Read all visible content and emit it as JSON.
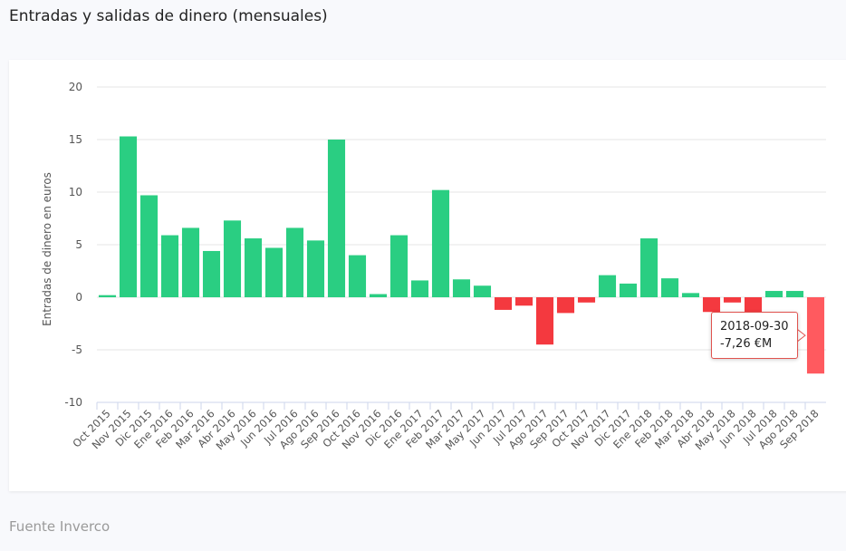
{
  "page": {
    "title": "Entradas y salidas de dinero (mensuales)",
    "source": "Fuente Inverco"
  },
  "tooltip": {
    "date": "2018-09-30",
    "value": "-7,26 €M"
  },
  "colors": {
    "positive": "#2ace82",
    "negative": "#f4393f",
    "highlight": "#ff5a5f"
  },
  "chart_data": {
    "type": "bar",
    "title": "",
    "xlabel": "",
    "ylabel": "Entradas de dinero en euros",
    "ylim": [
      -10,
      20
    ],
    "yticks": [
      -10,
      -5,
      0,
      5,
      10,
      15,
      20
    ],
    "grid": true,
    "categories": [
      "Oct 2015",
      "Nov 2015",
      "Dic 2015",
      "Ene 2016",
      "Feb 2016",
      "Mar 2016",
      "Abr 2016",
      "May 2016",
      "Jun 2016",
      "Jul 2016",
      "Ago 2016",
      "Sep 2016",
      "Oct 2016",
      "Nov 2016",
      "Dic 2016",
      "Ene 2017",
      "Feb 2017",
      "Mar 2017",
      "May 2017",
      "Jun 2017",
      "Jul 2017",
      "Ago 2017",
      "Sep 2017",
      "Oct 2017",
      "Nov 2017",
      "Dic 2017",
      "Ene 2018",
      "Feb 2018",
      "Mar 2018",
      "Abr 2018",
      "May 2018",
      "Jun 2018",
      "Jul 2018",
      "Ago 2018",
      "Sep 2018"
    ],
    "values": [
      0.2,
      15.3,
      9.7,
      5.9,
      6.6,
      4.4,
      7.3,
      5.6,
      4.7,
      6.6,
      5.4,
      15.0,
      4.0,
      0.3,
      5.9,
      1.6,
      10.2,
      1.7,
      1.1,
      -1.2,
      -0.8,
      -4.5,
      -1.5,
      -0.5,
      2.1,
      1.3,
      5.6,
      1.8,
      0.4,
      -1.4,
      -0.5,
      -3.3,
      0.6,
      0.6,
      -7.26
    ],
    "highlighted": "Sep 2018"
  }
}
